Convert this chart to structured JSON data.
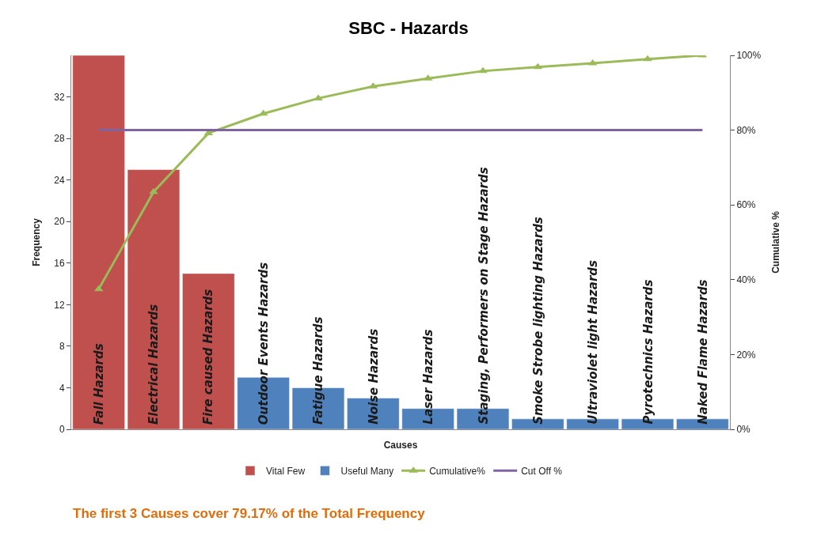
{
  "chart_data": {
    "type": "bar",
    "title": "SBC - Hazards",
    "xlabel": "Causes",
    "ylabel": "Frequency",
    "y2label": "Cumulative %",
    "categories": [
      "Fall Hazards",
      "Electrical Hazards",
      "Fire caused Hazards",
      "Outdoor Events Hazards",
      "Fatigue Hazards",
      "Noise Hazards",
      "Laser Hazards",
      "Staging, Performers on Stage Hazards",
      "Smoke Strobe lighting Hazards",
      "Ultraviolet light Hazards",
      "Pyrotechnics Hazards",
      "Naked Flame Hazards"
    ],
    "series": [
      {
        "name": "Vital Few",
        "color": "#c0504d",
        "values": [
          36,
          25,
          15,
          null,
          null,
          null,
          null,
          null,
          null,
          null,
          null,
          null
        ]
      },
      {
        "name": "Useful Many",
        "color": "#4f81bd",
        "values": [
          null,
          null,
          null,
          5,
          4,
          3,
          2,
          2,
          1,
          1,
          1,
          1
        ]
      },
      {
        "name": "Cumulative%",
        "color": "#9bbb59",
        "type": "line",
        "axis": "y2",
        "marker": "triangle",
        "values": [
          37.5,
          63.5,
          79.2,
          84.4,
          88.5,
          91.7,
          93.8,
          95.8,
          96.9,
          97.9,
          99,
          100
        ]
      },
      {
        "name": "Cut Off %",
        "color": "#8064a2",
        "type": "line",
        "axis": "y2",
        "marker": "none",
        "values": [
          80,
          80,
          80,
          80,
          80,
          80,
          80,
          80,
          80,
          80,
          80,
          80
        ]
      }
    ],
    "ylim": [
      0,
      36
    ],
    "yticks": [
      0,
      4,
      8,
      12,
      16,
      20,
      24,
      28,
      32
    ],
    "y2lim": [
      0,
      100
    ],
    "y2ticks": [
      {
        "value": 0,
        "label": "0%"
      },
      {
        "value": 20,
        "label": "20%"
      },
      {
        "value": 40,
        "label": "40%"
      },
      {
        "value": 60,
        "label": "60%"
      },
      {
        "value": 80,
        "label": "80%"
      },
      {
        "value": 100,
        "label": "100%"
      }
    ],
    "grid": false,
    "legend": "bottom",
    "annotations": [
      "The first 3 Causes cover 79.17% of the Total Frequency"
    ]
  }
}
